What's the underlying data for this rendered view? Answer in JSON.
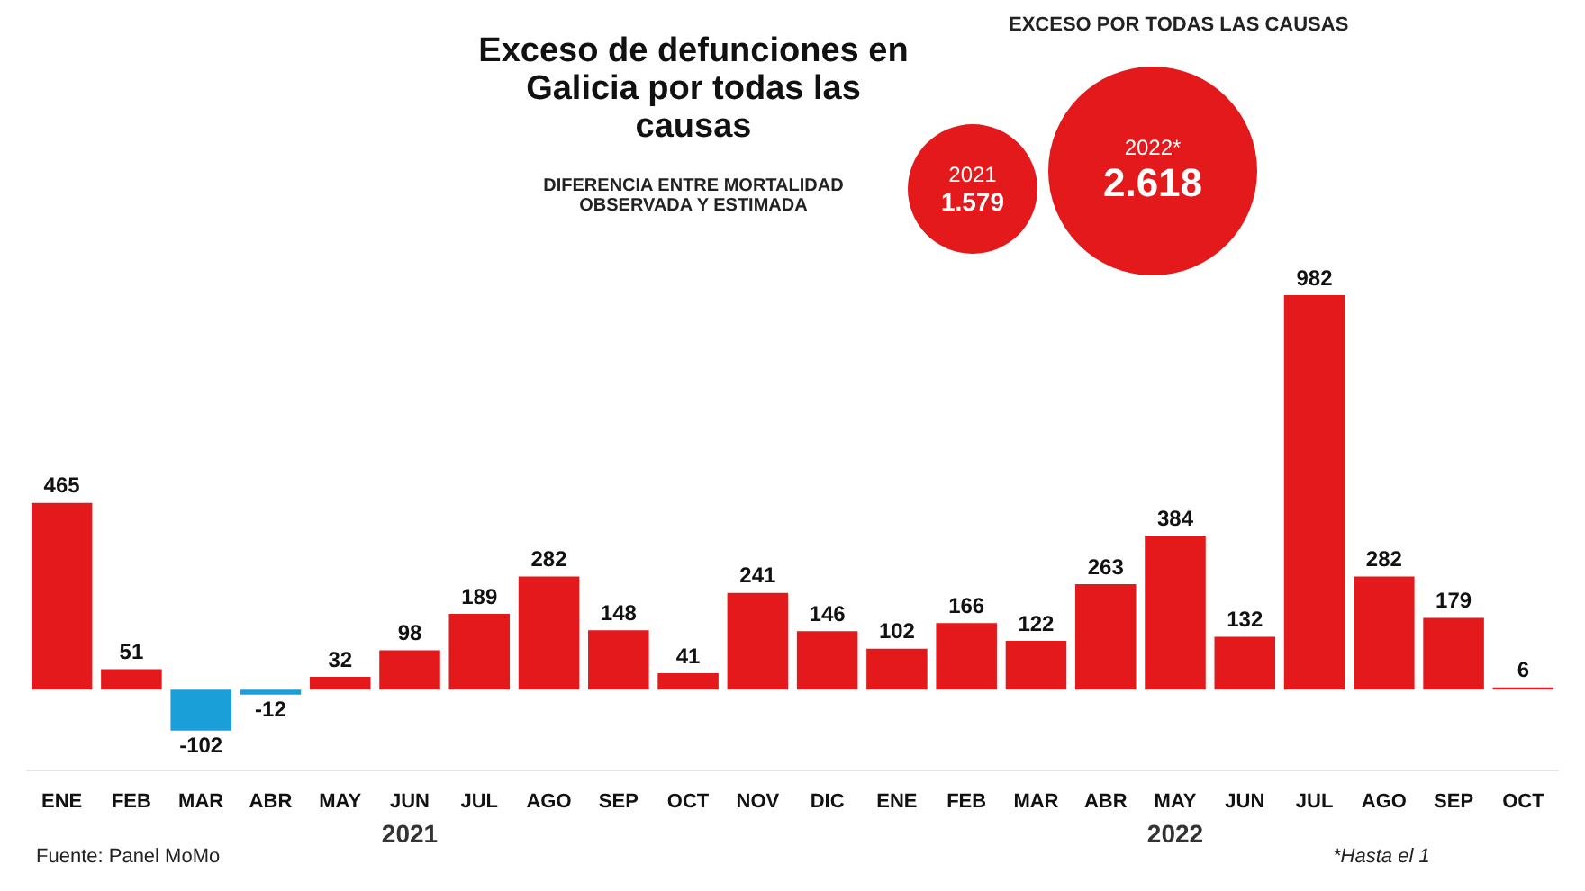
{
  "chart_data": {
    "type": "bar",
    "title": "Exceso de defunciones en Galicia por todas las causas",
    "subtitle": "DIFERENCIA ENTRE MORTALIDAD OBSERVADA Y ESTIMADA",
    "categories": [
      "ENE",
      "FEB",
      "MAR",
      "ABR",
      "MAY",
      "JUN",
      "JUL",
      "AGO",
      "SEP",
      "OCT",
      "NOV",
      "DIC",
      "ENE",
      "FEB",
      "MAR",
      "ABR",
      "MAY",
      "JUN",
      "JUL",
      "AGO",
      "SEP",
      "OCT"
    ],
    "values": [
      465,
      51,
      -102,
      -12,
      32,
      98,
      189,
      282,
      148,
      41,
      241,
      146,
      102,
      166,
      122,
      263,
      384,
      132,
      982,
      282,
      179,
      6
    ],
    "colors": [
      "#e3191c",
      "#e3191c",
      "#1a9fd9",
      "#1a9fd9",
      "#e3191c",
      "#e3191c",
      "#e3191c",
      "#e3191c",
      "#e3191c",
      "#e3191c",
      "#e3191c",
      "#e3191c",
      "#e3191c",
      "#e3191c",
      "#e3191c",
      "#e3191c",
      "#e3191c",
      "#e3191c",
      "#e3191c",
      "#e3191c",
      "#e3191c",
      "#e3191c"
    ],
    "data_labels": true,
    "grid": false,
    "legend": false,
    "tick_labels": "x",
    "annotations": [
      "EXCESO POR TODAS LAS CAUSAS",
      "2021",
      "1.579",
      "2022*",
      "2.618",
      "2021",
      "2022",
      "*Hasta el 1",
      "Fuente: Panel MoMo"
    ]
  }
}
